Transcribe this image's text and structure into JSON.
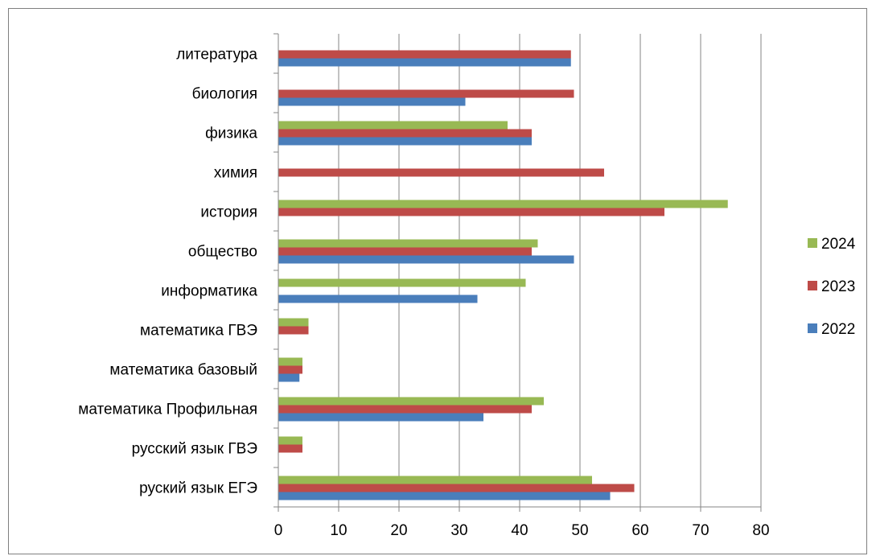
{
  "chart_data": {
    "type": "bar",
    "orientation": "horizontal",
    "categories": [
      "руский язык ЕГЭ",
      "русский язык ГВЭ",
      "математика  Профильная",
      "математика   базовый",
      "математика ГВЭ",
      "информатика",
      "общество",
      "история",
      "химия",
      "физика",
      "биология",
      "литература"
    ],
    "series": [
      {
        "name": "2022",
        "color": "#4a7ebb",
        "values": [
          55,
          null,
          34,
          3.5,
          null,
          33,
          49,
          null,
          null,
          42,
          31,
          48.5
        ]
      },
      {
        "name": "2023",
        "color": "#be4b48",
        "values": [
          59,
          4,
          42,
          4,
          5,
          0,
          42,
          64,
          54,
          42,
          49,
          48.5
        ]
      },
      {
        "name": "2024",
        "color": "#98b954",
        "values": [
          52,
          4,
          44,
          4,
          5,
          41,
          43,
          74.5,
          null,
          38,
          null,
          null
        ]
      }
    ],
    "xlim": [
      0,
      80
    ],
    "xticks": [
      "0",
      "10",
      "20",
      "30",
      "40",
      "50",
      "60",
      "70",
      "80"
    ],
    "grid": true,
    "legend": {
      "position": "right",
      "order": [
        "2024",
        "2023",
        "2022"
      ]
    },
    "title": "",
    "xlabel": "",
    "ylabel": ""
  }
}
